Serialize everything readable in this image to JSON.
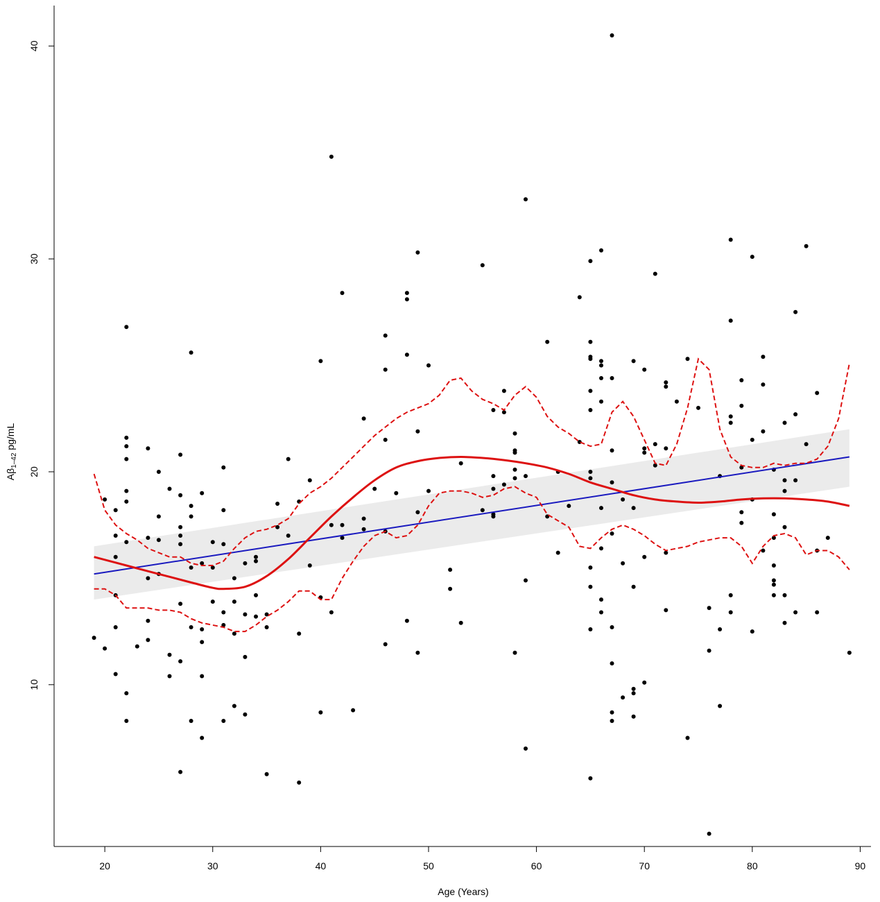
{
  "chart_data": {
    "type": "scatter",
    "title": "",
    "xlabel": "Age (Years)",
    "ylabel_main": "Aβ",
    "ylabel_sub": "1–42",
    "ylabel_unit": " pg/mL",
    "xlim": [
      15.3,
      91.0
    ],
    "ylim": [
      2.4,
      41.9
    ],
    "x_ticks": [
      20,
      30,
      40,
      50,
      60,
      70,
      80,
      90
    ],
    "y_ticks": [
      10,
      20,
      30,
      40
    ],
    "grid": false,
    "colors": {
      "points": "#000000",
      "linear_fit": "#1a1abf",
      "confidence_band": "#ebebeb",
      "spline_fit": "#dd1111",
      "spline_ci": "#dd1111"
    },
    "points": [
      [
        19,
        12.2
      ],
      [
        20,
        11.7
      ],
      [
        20,
        18.7
      ],
      [
        21,
        18.2
      ],
      [
        21,
        17.0
      ],
      [
        21,
        16.0
      ],
      [
        21,
        14.2
      ],
      [
        21,
        12.7
      ],
      [
        21,
        10.5
      ],
      [
        22,
        26.8
      ],
      [
        22,
        21.6
      ],
      [
        22,
        21.2
      ],
      [
        22,
        20.6
      ],
      [
        22,
        19.1
      ],
      [
        22,
        18.6
      ],
      [
        22,
        16.7
      ],
      [
        22,
        9.6
      ],
      [
        22,
        8.3
      ],
      [
        23,
        11.8
      ],
      [
        24,
        21.1
      ],
      [
        24,
        16.9
      ],
      [
        24,
        15.0
      ],
      [
        24,
        13.0
      ],
      [
        24,
        12.1
      ],
      [
        25,
        20.0
      ],
      [
        25,
        17.9
      ],
      [
        25,
        16.8
      ],
      [
        25,
        15.2
      ],
      [
        26,
        19.2
      ],
      [
        26,
        11.4
      ],
      [
        26,
        10.4
      ],
      [
        27,
        20.8
      ],
      [
        27,
        18.9
      ],
      [
        27,
        17.4
      ],
      [
        27,
        17.0
      ],
      [
        27,
        16.6
      ],
      [
        27,
        13.8
      ],
      [
        27,
        11.1
      ],
      [
        27,
        5.9
      ],
      [
        28,
        25.6
      ],
      [
        28,
        18.4
      ],
      [
        28,
        17.9
      ],
      [
        28,
        15.5
      ],
      [
        28,
        12.7
      ],
      [
        28,
        8.3
      ],
      [
        29,
        19.0
      ],
      [
        29,
        15.7
      ],
      [
        29,
        12.6
      ],
      [
        29,
        12.0
      ],
      [
        29,
        10.4
      ],
      [
        29,
        7.5
      ],
      [
        30,
        16.7
      ],
      [
        30,
        15.5
      ],
      [
        30,
        13.9
      ],
      [
        31,
        20.2
      ],
      [
        31,
        18.2
      ],
      [
        31,
        16.6
      ],
      [
        31,
        13.4
      ],
      [
        31,
        12.8
      ],
      [
        31,
        8.3
      ],
      [
        32,
        15.0
      ],
      [
        32,
        13.9
      ],
      [
        32,
        12.4
      ],
      [
        32,
        9.0
      ],
      [
        33,
        15.7
      ],
      [
        33,
        13.3
      ],
      [
        33,
        11.3
      ],
      [
        33,
        8.6
      ],
      [
        34,
        16.0
      ],
      [
        34,
        15.8
      ],
      [
        34,
        14.2
      ],
      [
        34,
        13.2
      ],
      [
        35,
        13.3
      ],
      [
        35,
        12.7
      ],
      [
        35,
        5.8
      ],
      [
        36,
        18.5
      ],
      [
        36,
        17.4
      ],
      [
        37,
        20.6
      ],
      [
        37,
        17.0
      ],
      [
        38,
        18.6
      ],
      [
        38,
        12.4
      ],
      [
        38,
        5.4
      ],
      [
        39,
        19.6
      ],
      [
        39,
        15.6
      ],
      [
        40,
        25.2
      ],
      [
        40,
        14.1
      ],
      [
        40,
        8.7
      ],
      [
        41,
        34.8
      ],
      [
        41,
        17.5
      ],
      [
        41,
        13.4
      ],
      [
        42,
        28.4
      ],
      [
        42,
        17.5
      ],
      [
        42,
        16.9
      ],
      [
        43,
        8.8
      ],
      [
        44,
        22.5
      ],
      [
        44,
        17.8
      ],
      [
        44,
        17.3
      ],
      [
        45,
        19.2
      ],
      [
        46,
        26.4
      ],
      [
        46,
        24.8
      ],
      [
        46,
        21.5
      ],
      [
        46,
        17.2
      ],
      [
        46,
        11.9
      ],
      [
        47,
        19.0
      ],
      [
        48,
        28.4
      ],
      [
        48,
        28.1
      ],
      [
        48,
        25.5
      ],
      [
        48,
        13.0
      ],
      [
        49,
        30.3
      ],
      [
        49,
        21.9
      ],
      [
        49,
        18.1
      ],
      [
        49,
        11.5
      ],
      [
        50,
        25.0
      ],
      [
        50,
        19.1
      ],
      [
        52,
        15.4
      ],
      [
        52,
        14.5
      ],
      [
        53,
        20.4
      ],
      [
        53,
        12.9
      ],
      [
        55,
        29.7
      ],
      [
        55,
        18.2
      ],
      [
        56,
        22.9
      ],
      [
        56,
        19.8
      ],
      [
        56,
        19.2
      ],
      [
        56,
        18.0
      ],
      [
        56,
        17.9
      ],
      [
        57,
        23.8
      ],
      [
        57,
        22.8
      ],
      [
        57,
        19.4
      ],
      [
        58,
        21.8
      ],
      [
        58,
        21.0
      ],
      [
        58,
        20.9
      ],
      [
        58,
        20.1
      ],
      [
        58,
        19.7
      ],
      [
        58,
        11.5
      ],
      [
        59,
        32.8
      ],
      [
        59,
        19.8
      ],
      [
        59,
        14.9
      ],
      [
        59,
        7.0
      ],
      [
        61,
        26.1
      ],
      [
        61,
        17.9
      ],
      [
        62,
        20.0
      ],
      [
        62,
        16.2
      ],
      [
        63,
        18.4
      ],
      [
        64,
        28.2
      ],
      [
        64,
        21.4
      ],
      [
        65,
        29.9
      ],
      [
        65,
        26.1
      ],
      [
        65,
        25.4
      ],
      [
        65,
        25.3
      ],
      [
        65,
        23.8
      ],
      [
        65,
        22.9
      ],
      [
        65,
        20.0
      ],
      [
        65,
        19.7
      ],
      [
        65,
        15.5
      ],
      [
        65,
        14.6
      ],
      [
        65,
        12.6
      ],
      [
        65,
        5.6
      ],
      [
        66,
        30.4
      ],
      [
        66,
        25.2
      ],
      [
        66,
        25.0
      ],
      [
        66,
        24.4
      ],
      [
        66,
        23.3
      ],
      [
        66,
        18.3
      ],
      [
        66,
        16.4
      ],
      [
        66,
        14.0
      ],
      [
        66,
        13.4
      ],
      [
        67,
        40.5
      ],
      [
        67,
        24.4
      ],
      [
        67,
        21.0
      ],
      [
        67,
        19.5
      ],
      [
        67,
        17.1
      ],
      [
        67,
        12.7
      ],
      [
        67,
        11.0
      ],
      [
        67,
        8.7
      ],
      [
        67,
        8.3
      ],
      [
        68,
        18.7
      ],
      [
        68,
        15.7
      ],
      [
        68,
        9.4
      ],
      [
        69,
        25.2
      ],
      [
        69,
        18.3
      ],
      [
        69,
        14.6
      ],
      [
        69,
        9.8
      ],
      [
        69,
        9.6
      ],
      [
        69,
        8.5
      ],
      [
        70,
        24.8
      ],
      [
        70,
        21.1
      ],
      [
        70,
        20.9
      ],
      [
        70,
        16.0
      ],
      [
        70,
        10.1
      ],
      [
        71,
        29.3
      ],
      [
        71,
        21.3
      ],
      [
        71,
        20.3
      ],
      [
        72,
        24.2
      ],
      [
        72,
        24.0
      ],
      [
        72,
        21.1
      ],
      [
        72,
        16.2
      ],
      [
        72,
        13.5
      ],
      [
        73,
        23.3
      ],
      [
        74,
        25.3
      ],
      [
        74,
        7.5
      ],
      [
        75,
        23.0
      ],
      [
        76,
        13.6
      ],
      [
        76,
        11.6
      ],
      [
        76,
        3.0
      ],
      [
        77,
        19.8
      ],
      [
        77,
        12.6
      ],
      [
        77,
        9.0
      ],
      [
        78,
        30.9
      ],
      [
        78,
        27.1
      ],
      [
        78,
        22.6
      ],
      [
        78,
        22.3
      ],
      [
        78,
        14.2
      ],
      [
        78,
        13.4
      ],
      [
        79,
        24.3
      ],
      [
        79,
        23.1
      ],
      [
        79,
        20.2
      ],
      [
        79,
        18.1
      ],
      [
        79,
        17.6
      ],
      [
        80,
        30.1
      ],
      [
        80,
        21.5
      ],
      [
        80,
        18.7
      ],
      [
        80,
        12.5
      ],
      [
        81,
        25.4
      ],
      [
        81,
        24.1
      ],
      [
        81,
        21.9
      ],
      [
        81,
        16.3
      ],
      [
        82,
        20.1
      ],
      [
        82,
        18.0
      ],
      [
        82,
        16.9
      ],
      [
        82,
        15.6
      ],
      [
        82,
        14.9
      ],
      [
        82,
        14.7
      ],
      [
        82,
        14.2
      ],
      [
        83,
        22.3
      ],
      [
        83,
        19.6
      ],
      [
        83,
        19.1
      ],
      [
        83,
        17.4
      ],
      [
        83,
        14.2
      ],
      [
        83,
        12.9
      ],
      [
        84,
        27.5
      ],
      [
        84,
        22.7
      ],
      [
        84,
        19.6
      ],
      [
        84,
        13.4
      ],
      [
        85,
        30.6
      ],
      [
        85,
        21.3
      ],
      [
        86,
        23.7
      ],
      [
        86,
        16.3
      ],
      [
        86,
        13.4
      ],
      [
        87,
        16.9
      ],
      [
        89,
        11.5
      ]
    ],
    "linear_fit": {
      "x": [
        19,
        89
      ],
      "y": [
        15.2,
        20.7
      ]
    },
    "confidence_band": {
      "x": [
        19,
        89
      ],
      "upper": [
        16.5,
        22.0
      ],
      "lower": [
        14.0,
        19.3
      ]
    },
    "spline_fit": {
      "x": [
        19,
        22,
        25,
        28,
        30,
        31,
        33,
        35,
        37,
        39,
        41,
        43,
        45,
        47,
        49,
        51,
        53,
        55,
        57,
        59,
        61,
        63,
        65,
        67,
        69,
        71,
        73,
        75,
        77,
        79,
        81,
        83,
        85,
        87,
        89
      ],
      "y": [
        16.0,
        15.6,
        15.2,
        14.8,
        14.55,
        14.5,
        14.6,
        15.1,
        15.9,
        16.9,
        17.9,
        18.8,
        19.6,
        20.2,
        20.5,
        20.65,
        20.7,
        20.65,
        20.55,
        20.4,
        20.2,
        19.9,
        19.5,
        19.2,
        18.9,
        18.7,
        18.6,
        18.55,
        18.6,
        18.7,
        18.75,
        18.75,
        18.7,
        18.6,
        18.4
      ]
    },
    "spline_ci_upper": {
      "x": [
        19,
        20,
        21,
        22,
        23,
        24,
        25,
        26,
        27,
        28,
        29,
        30,
        31,
        32,
        33,
        34,
        35,
        36,
        37,
        38,
        39,
        40,
        41,
        42,
        43,
        44,
        45,
        46,
        47,
        48,
        49,
        50,
        51,
        52,
        53,
        54,
        55,
        56,
        57,
        58,
        59,
        60,
        61,
        62,
        63,
        64,
        65,
        66,
        67,
        68,
        69,
        70,
        71,
        72,
        73,
        74,
        75,
        76,
        77,
        78,
        79,
        80,
        81,
        82,
        83,
        84,
        85,
        86,
        87,
        88,
        89
      ],
      "y": [
        19.9,
        18.2,
        17.5,
        17.1,
        16.8,
        16.4,
        16.2,
        16.0,
        16.0,
        15.7,
        15.6,
        15.6,
        15.8,
        16.4,
        16.9,
        17.2,
        17.3,
        17.5,
        17.8,
        18.5,
        19.0,
        19.3,
        19.7,
        20.2,
        20.7,
        21.2,
        21.7,
        22.1,
        22.5,
        22.8,
        23.0,
        23.2,
        23.6,
        24.3,
        24.4,
        23.8,
        23.4,
        23.2,
        22.9,
        23.6,
        24.0,
        23.5,
        22.6,
        22.1,
        21.8,
        21.4,
        21.2,
        21.3,
        22.8,
        23.3,
        22.6,
        21.5,
        20.4,
        20.3,
        21.3,
        23.0,
        25.3,
        24.8,
        22.0,
        20.7,
        20.3,
        20.2,
        20.2,
        20.4,
        20.3,
        20.4,
        20.4,
        20.6,
        21.2,
        22.5,
        25.1
      ]
    },
    "spline_ci_lower": {
      "x": [
        19,
        20,
        21,
        22,
        23,
        24,
        25,
        26,
        27,
        28,
        29,
        30,
        31,
        32,
        33,
        34,
        35,
        36,
        37,
        38,
        39,
        40,
        41,
        42,
        43,
        44,
        45,
        46,
        47,
        48,
        49,
        50,
        51,
        52,
        53,
        54,
        55,
        56,
        57,
        58,
        59,
        60,
        61,
        62,
        63,
        64,
        65,
        66,
        67,
        68,
        69,
        70,
        71,
        72,
        73,
        74,
        75,
        76,
        77,
        78,
        79,
        80,
        81,
        82,
        83,
        84,
        85,
        86,
        87,
        88,
        89
      ],
      "y": [
        14.5,
        14.5,
        14.2,
        13.6,
        13.6,
        13.6,
        13.5,
        13.5,
        13.4,
        13.1,
        12.9,
        12.8,
        12.7,
        12.5,
        12.5,
        12.8,
        13.2,
        13.5,
        13.9,
        14.4,
        14.4,
        14.0,
        14.0,
        15.0,
        15.8,
        16.5,
        17.0,
        17.2,
        16.9,
        17.0,
        17.5,
        18.4,
        19.0,
        19.1,
        19.1,
        19.0,
        18.8,
        18.9,
        19.2,
        19.3,
        19.0,
        18.8,
        18.0,
        17.7,
        17.4,
        16.5,
        16.4,
        16.9,
        17.3,
        17.5,
        17.3,
        17.0,
        16.6,
        16.3,
        16.4,
        16.5,
        16.7,
        16.8,
        16.9,
        16.9,
        16.5,
        15.7,
        16.5,
        17.0,
        17.1,
        16.9,
        16.1,
        16.3,
        16.3,
        16.0,
        15.4
      ]
    }
  }
}
